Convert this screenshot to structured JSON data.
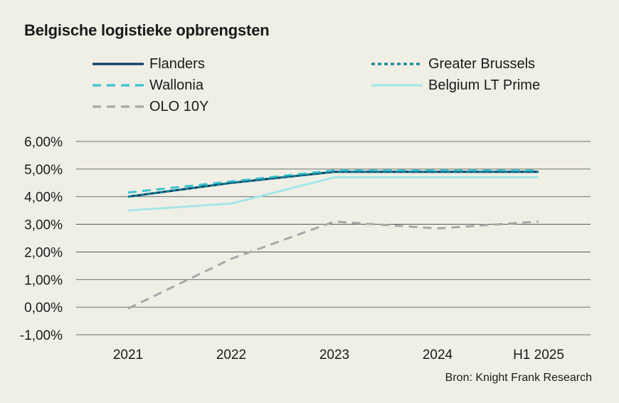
{
  "chart_data": {
    "type": "line",
    "title": "Belgische logistieke opbrengsten",
    "categories": [
      "2021",
      "2022",
      "2023",
      "2024",
      "H1 2025"
    ],
    "y_ticks": [
      "-1,00%",
      "0,00%",
      "1,00%",
      "2,00%",
      "3,00%",
      "4,00%",
      "5,00%",
      "6,00%"
    ],
    "ylim": [
      -1,
      6
    ],
    "xlabel": "",
    "ylabel": "",
    "grid": true,
    "legend_position": "top",
    "series": [
      {
        "name": "Flanders",
        "values": [
          4.0,
          4.5,
          4.9,
          4.9,
          4.9
        ],
        "color": "#0d3b5e",
        "style": "solid"
      },
      {
        "name": "Greater Brussels",
        "values": [
          4.0,
          4.5,
          4.9,
          4.9,
          4.9
        ],
        "color": "#12849a",
        "style": "dotted"
      },
      {
        "name": "Wallonia",
        "values": [
          4.15,
          4.55,
          4.95,
          4.95,
          4.95
        ],
        "color": "#3cc3cd",
        "style": "dashed"
      },
      {
        "name": "Belgium LT Prime",
        "values": [
          3.5,
          3.75,
          4.7,
          4.7,
          4.7
        ],
        "color": "#a6e6e6",
        "style": "solid"
      },
      {
        "name": "OLO 10Y",
        "values": [
          -0.05,
          1.75,
          3.1,
          2.85,
          3.1
        ],
        "color": "#a8a8a8",
        "style": "dashed"
      }
    ],
    "source": "Bron: Knight Frank Research"
  }
}
